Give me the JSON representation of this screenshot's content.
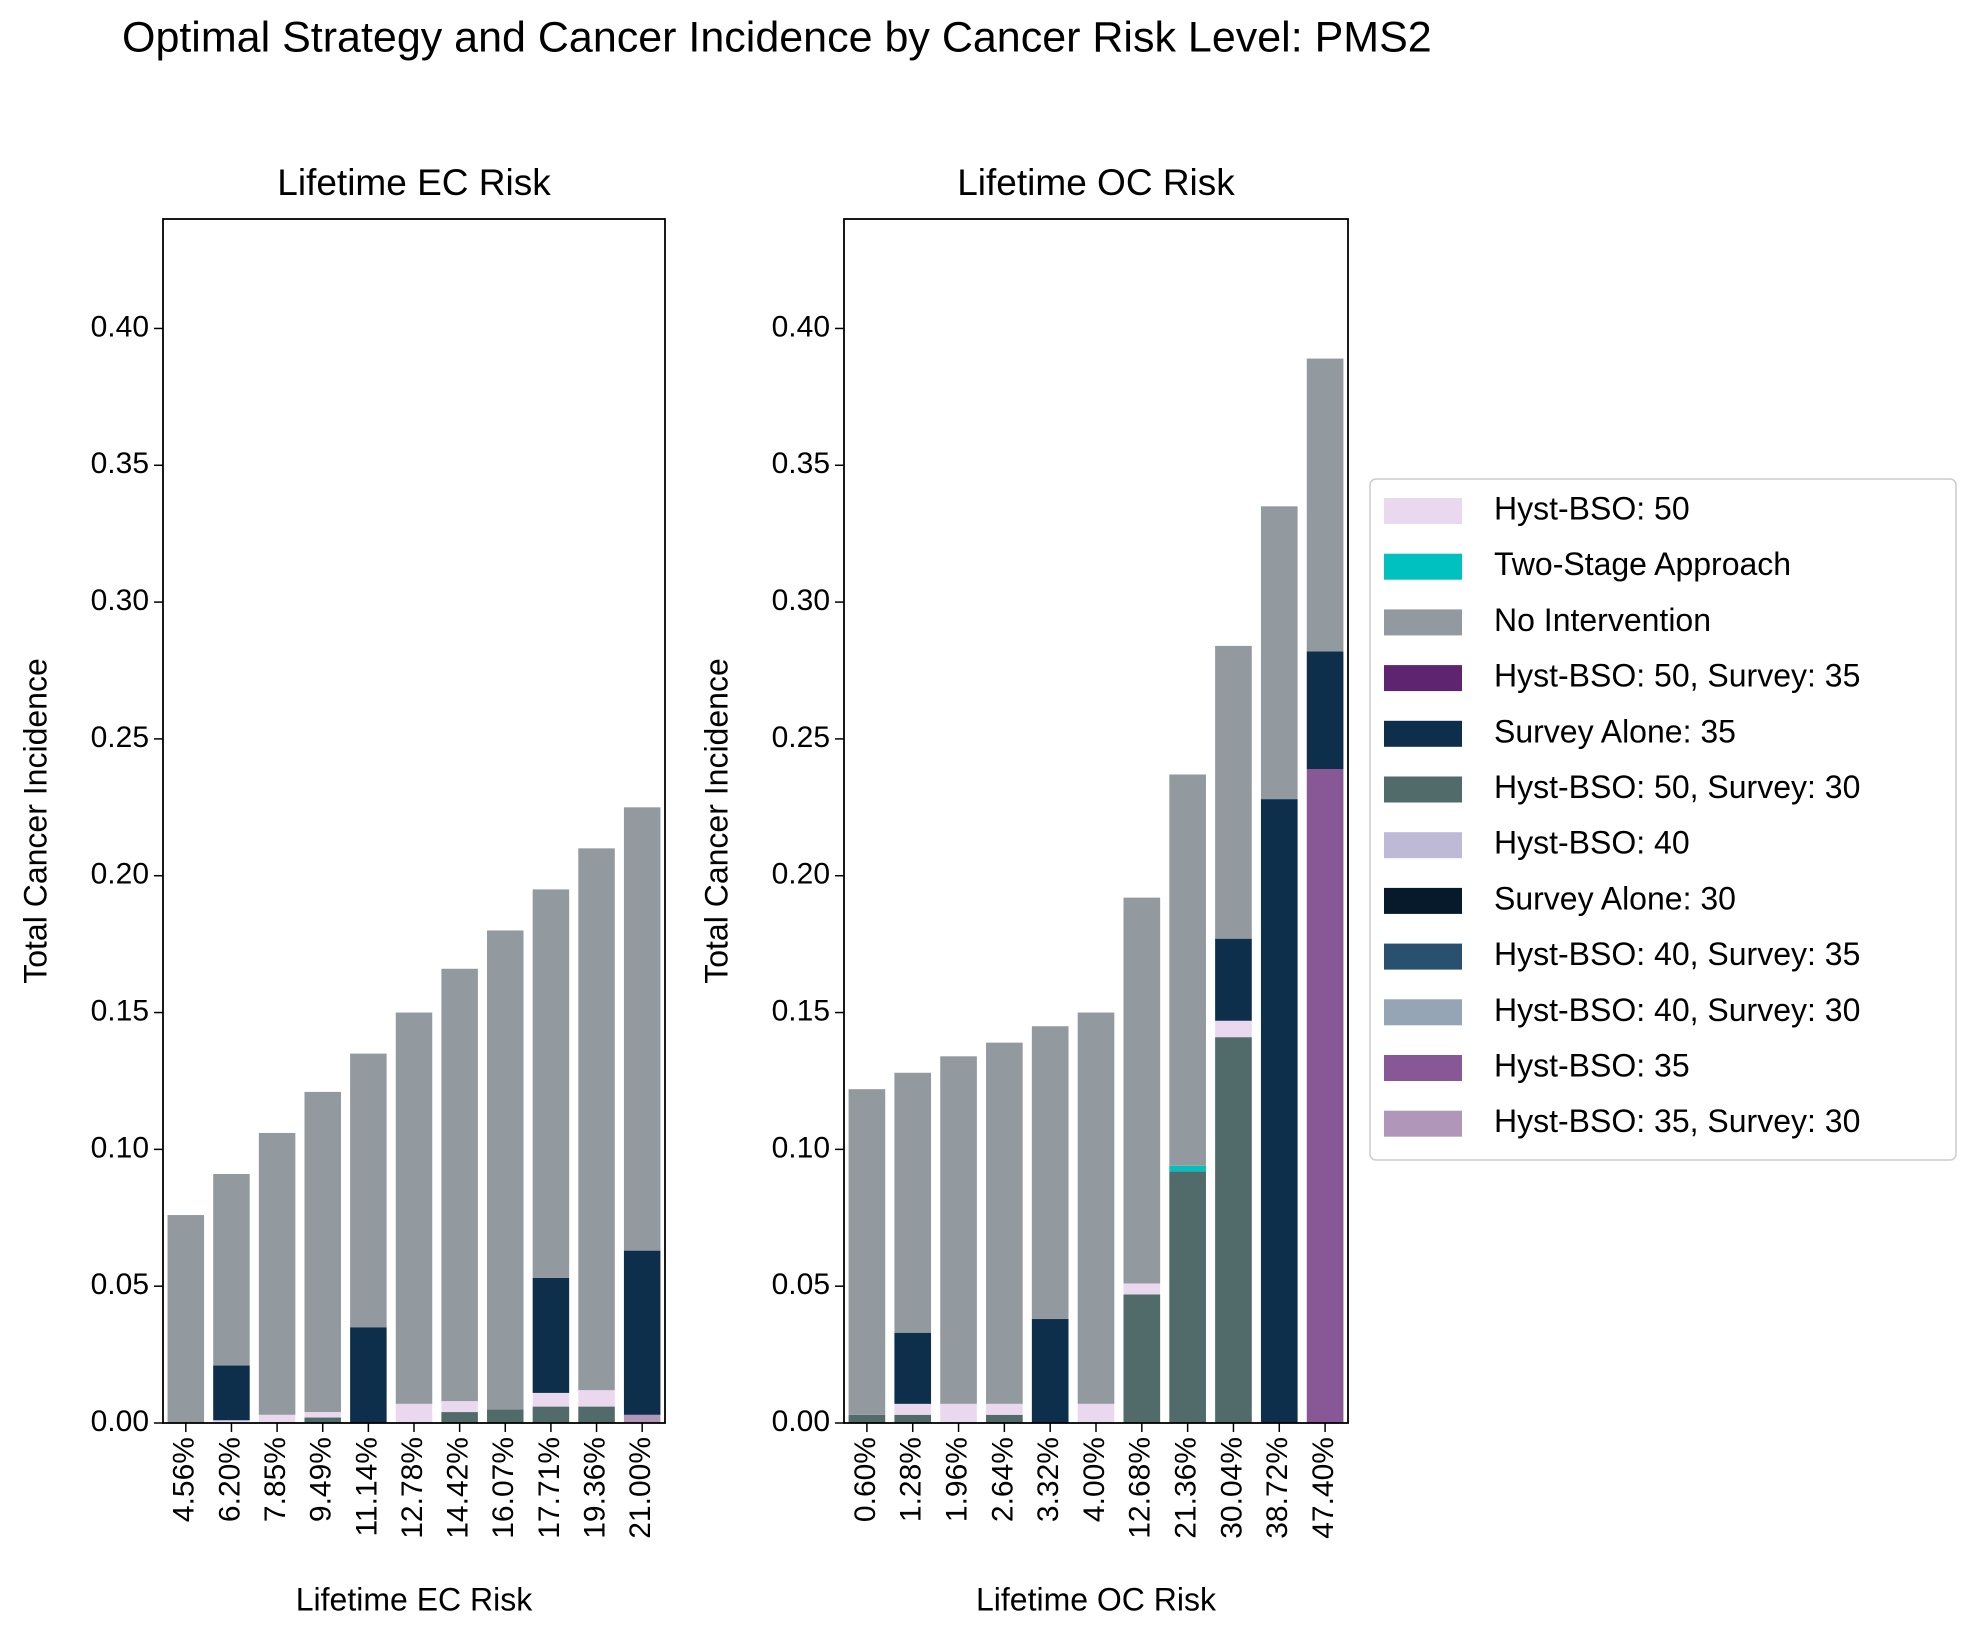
{
  "title": "Optimal Strategy and Cancer Incidence by Cancer Risk Level: PMS2",
  "chart_data": [
    {
      "type": "bar",
      "stacked": true,
      "title": "Lifetime EC Risk",
      "xlabel": "Lifetime EC Risk",
      "ylabel": "Total Cancer Incidence",
      "categories": [
        "4.56%",
        "6.20%",
        "7.85%",
        "9.49%",
        "11.14%",
        "12.78%",
        "14.42%",
        "16.07%",
        "17.71%",
        "19.36%",
        "21.00%"
      ],
      "ylim": [
        0,
        0.44
      ],
      "yticks": [
        {
          "value": 0,
          "label": "0.00"
        },
        0.05,
        {
          "value": 0.1,
          "label": "0.10"
        },
        0.15,
        {
          "value": 0.2,
          "label": "0.20"
        },
        0.25,
        {
          "value": 0.3,
          "label": "0.30"
        },
        0.35,
        {
          "value": 0.4,
          "label": "0.40"
        }
      ],
      "series": [
        {
          "name": "Hyst-BSO: 50",
          "color": "#ead9ee",
          "values": [
            0,
            0.001,
            0.003,
            0.002,
            0,
            0.007,
            0.004,
            0,
            0.005,
            0.006,
            0
          ]
        },
        {
          "name": "Two-Stage Approach",
          "color": "#00c0c0",
          "values": [
            0,
            0,
            0,
            0,
            0,
            0,
            0,
            0,
            0,
            0,
            0
          ]
        },
        {
          "name": "No Intervention",
          "color": "#929aa0",
          "values": [
            0.076,
            0.07,
            0.103,
            0.117,
            0.1,
            0.143,
            0.158,
            0.175,
            0.142,
            0.198,
            0.162
          ]
        },
        {
          "name": "Hyst-BSO: 50, Survey: 35",
          "color": "#5e2470",
          "values": [
            0,
            0,
            0,
            0,
            0,
            0,
            0,
            0,
            0,
            0,
            0
          ]
        },
        {
          "name": "Survey Alone: 35",
          "color": "#0d2f4b",
          "values": [
            0,
            0.02,
            0,
            0,
            0.035,
            0,
            0,
            0,
            0.042,
            0,
            0.06
          ]
        },
        {
          "name": "Hyst-BSO: 50, Survey: 30",
          "color": "#516b6b",
          "values": [
            0,
            0,
            0,
            0.002,
            0,
            0,
            0.004,
            0.005,
            0.006,
            0.006,
            0
          ]
        },
        {
          "name": "Hyst-BSO: 40",
          "color": "#bfb9d8",
          "values": [
            0,
            0,
            0,
            0,
            0,
            0,
            0,
            0,
            0,
            0,
            0
          ]
        },
        {
          "name": "Survey Alone: 30",
          "color": "#071a2c",
          "values": [
            0,
            0,
            0,
            0,
            0,
            0,
            0,
            0,
            0,
            0,
            0
          ]
        },
        {
          "name": "Hyst-BSO: 40, Survey: 35",
          "color": "#2a5070",
          "values": [
            0,
            0,
            0,
            0,
            0,
            0,
            0,
            0,
            0,
            0,
            0
          ]
        },
        {
          "name": "Hyst-BSO: 40, Survey: 30",
          "color": "#95a5b5",
          "values": [
            0,
            0,
            0,
            0,
            0,
            0,
            0,
            0,
            0,
            0,
            0
          ]
        },
        {
          "name": "Hyst-BSO: 35",
          "color": "#875895",
          "values": [
            0,
            0,
            0,
            0,
            0,
            0,
            0,
            0,
            0,
            0,
            0
          ]
        },
        {
          "name": "Hyst-BSO: 35, Survey: 30",
          "color": "#b096b8",
          "values": [
            0,
            0,
            0,
            0,
            0,
            0,
            0,
            0,
            0,
            0,
            0.003
          ]
        }
      ]
    },
    {
      "type": "bar",
      "stacked": true,
      "title": "Lifetime OC Risk",
      "xlabel": "Lifetime OC Risk",
      "ylabel": "Total Cancer Incidence",
      "categories": [
        "0.60%",
        "1.28%",
        "1.96%",
        "2.64%",
        "3.32%",
        "4.00%",
        "12.68%",
        "21.36%",
        "30.04%",
        "38.72%",
        "47.40%"
      ],
      "ylim": [
        0,
        0.44
      ],
      "yticks": [
        {
          "value": 0,
          "label": "0.00"
        },
        0.05,
        {
          "value": 0.1,
          "label": "0.10"
        },
        0.15,
        {
          "value": 0.2,
          "label": "0.20"
        },
        0.25,
        {
          "value": 0.3,
          "label": "0.30"
        },
        0.35,
        {
          "value": 0.4,
          "label": "0.40"
        }
      ],
      "series": [
        {
          "values": [
            0,
            0.004,
            0.007,
            0.004,
            0,
            0.007,
            0.004,
            0,
            0.006,
            0,
            0
          ]
        },
        {
          "values": [
            0,
            0,
            0,
            0,
            0,
            0,
            0,
            0.002,
            0,
            0,
            0
          ]
        },
        {
          "values": [
            0.119,
            0.095,
            0.127,
            0.132,
            0.107,
            0.143,
            0.141,
            0.143,
            0.107,
            0.107,
            0.107
          ]
        },
        {
          "values": [
            0,
            0,
            0,
            0,
            0,
            0,
            0,
            0,
            0,
            0,
            0
          ]
        },
        {
          "values": [
            0,
            0.026,
            0,
            0,
            0.038,
            0,
            0,
            0,
            0.03,
            0.228,
            0.043
          ]
        },
        {
          "values": [
            0.003,
            0.003,
            0,
            0.003,
            0,
            0,
            0.047,
            0.092,
            0.141,
            0,
            0
          ]
        },
        {
          "values": [
            0,
            0,
            0,
            0,
            0,
            0,
            0,
            0,
            0,
            0,
            0
          ]
        },
        {
          "values": [
            0,
            0,
            0,
            0,
            0,
            0,
            0,
            0,
            0,
            0,
            0
          ]
        },
        {
          "values": [
            0,
            0,
            0,
            0,
            0,
            0,
            0,
            0,
            0,
            0,
            0
          ]
        },
        {
          "values": [
            0,
            0,
            0,
            0,
            0,
            0,
            0,
            0,
            0,
            0,
            0
          ]
        },
        {
          "values": [
            0,
            0,
            0,
            0,
            0,
            0,
            0,
            0,
            0,
            0,
            0.239
          ]
        },
        {
          "values": [
            0,
            0,
            0,
            0,
            0,
            0,
            0,
            0,
            0,
            0,
            0
          ]
        }
      ]
    }
  ]
}
